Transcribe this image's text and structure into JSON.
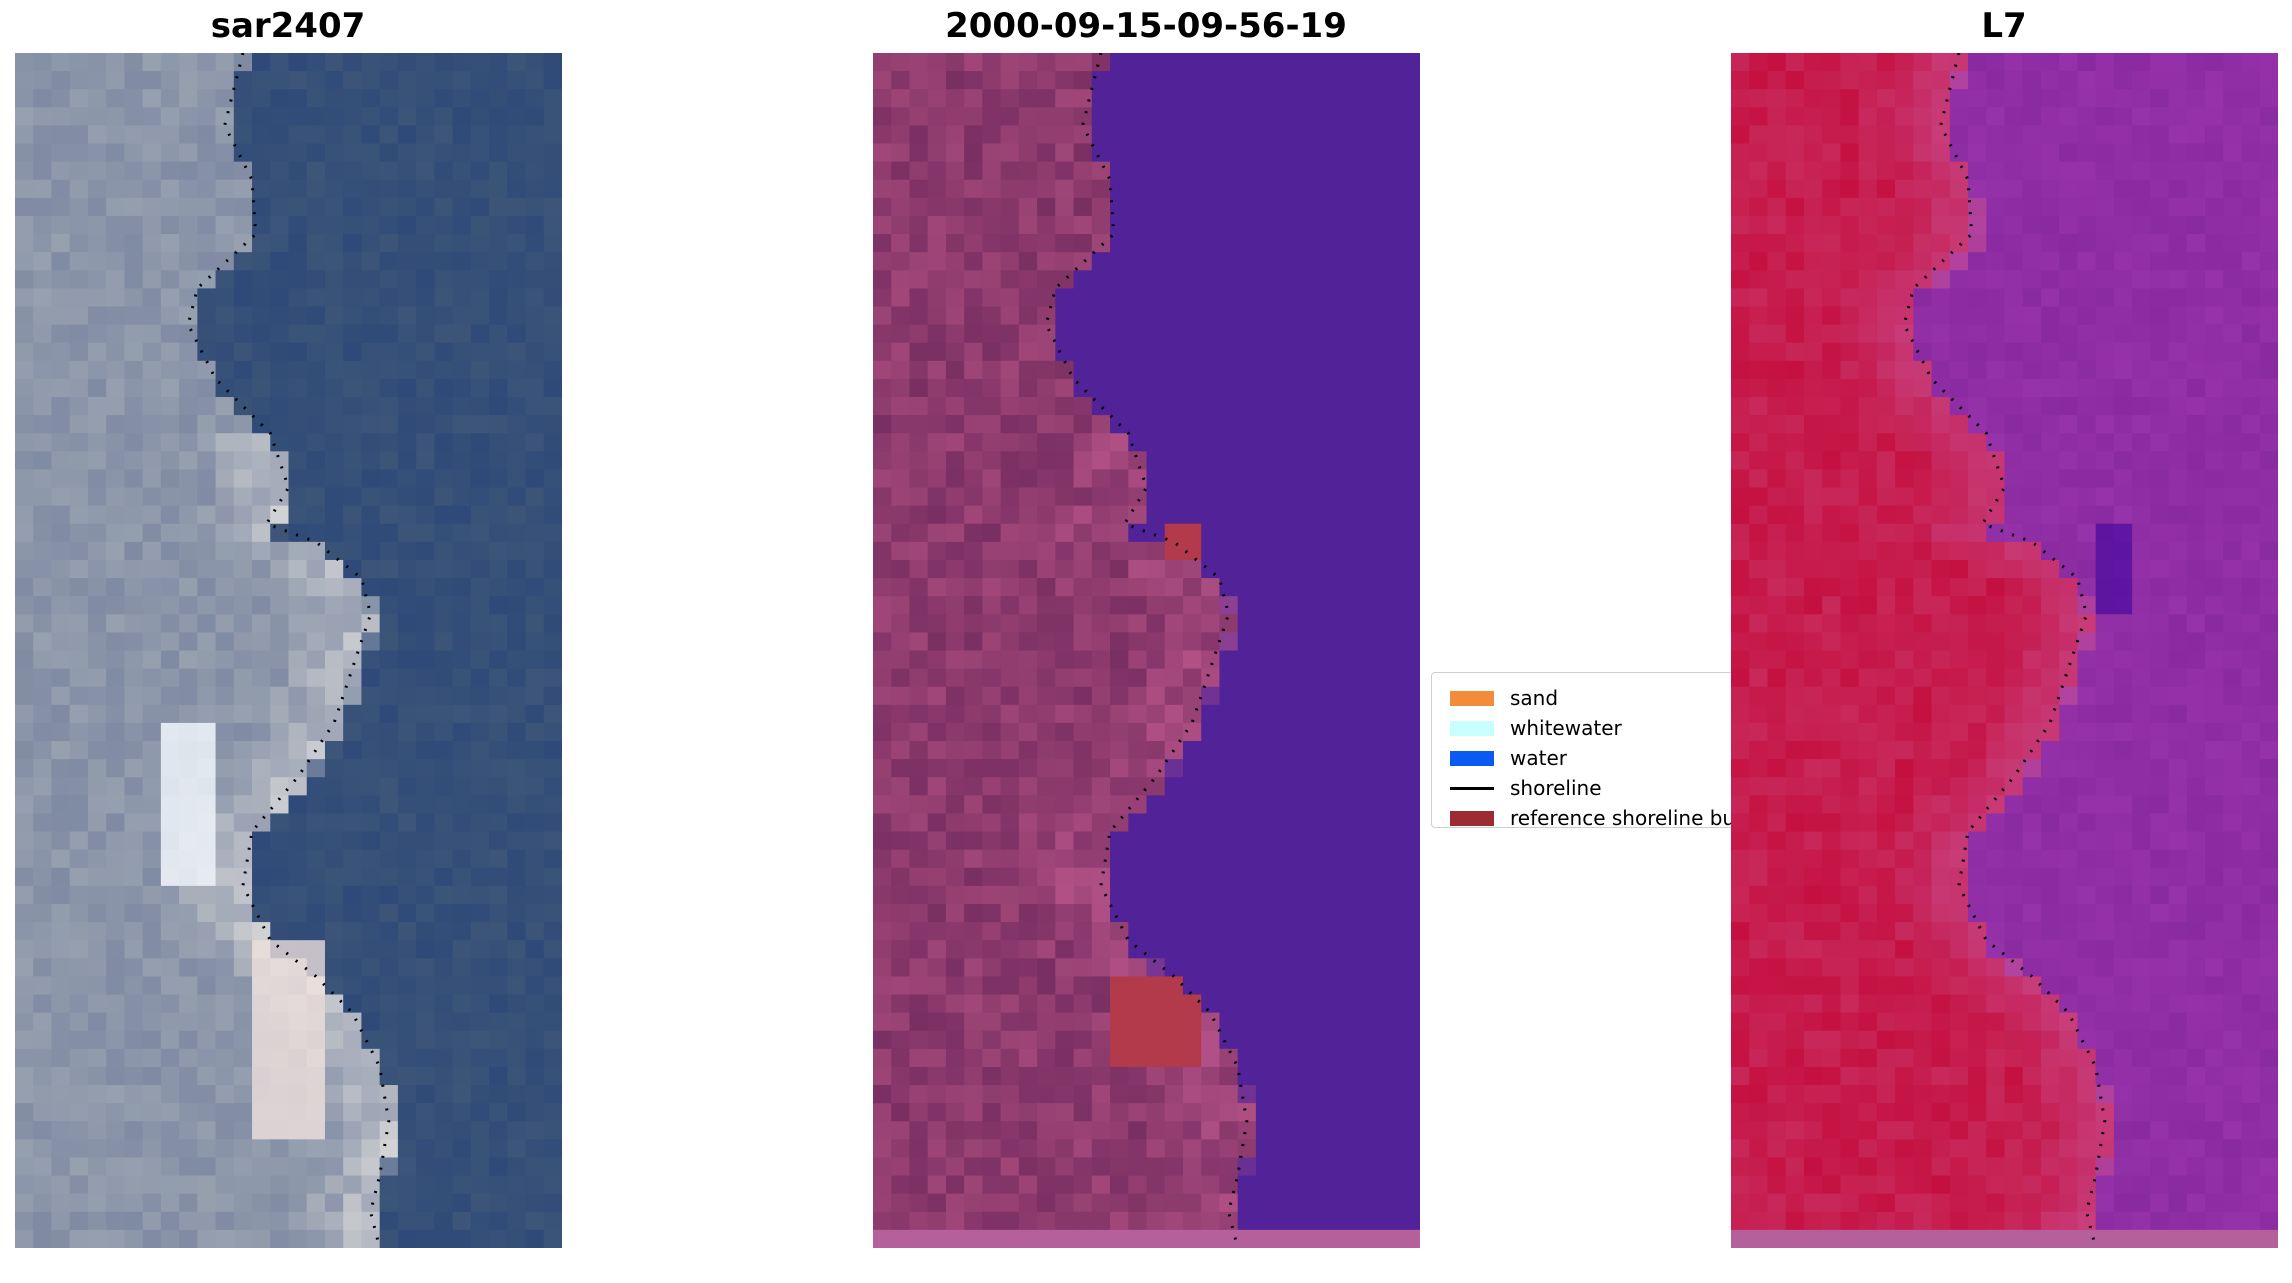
{
  "panels": [
    {
      "title": "sar2407"
    },
    {
      "title": "2000-09-15-09-56-19"
    },
    {
      "title": "L7"
    }
  ],
  "legend": {
    "items": [
      {
        "label": "sand",
        "color": "#f28c3b",
        "kind": "patch"
      },
      {
        "label": "whitewater",
        "color": "#c8ffff",
        "kind": "patch"
      },
      {
        "label": "water",
        "color": "#0a5af2",
        "kind": "patch"
      },
      {
        "label": "shoreline",
        "color": "#000000",
        "kind": "line"
      },
      {
        "label": "reference shoreline buffer",
        "color": "#9c2b33",
        "kind": "patch"
      }
    ]
  },
  "colors": {
    "rgb_water": "#2f4a78",
    "rgb_land": "#7f8aa3",
    "rgb_bright": "#f4f0ea",
    "class_water": "#522398",
    "class_land": "#7a2f63",
    "class_buffer": "#b23a4a",
    "class_bottom_strip": "#b5609a",
    "nir_land": "#c41040",
    "nir_water": "#8a2aa0",
    "nir_dark": "#4a0aa0"
  }
}
